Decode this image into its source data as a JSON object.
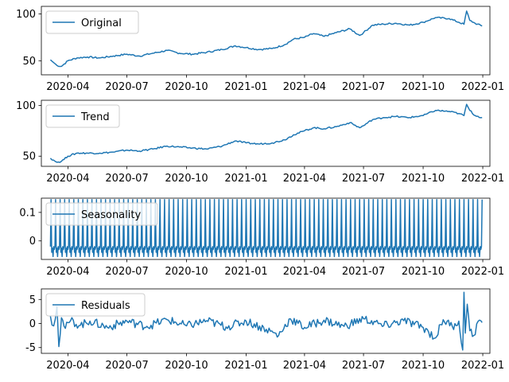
{
  "figure": {
    "line_color": "#1f77b4",
    "background": "#ffffff"
  },
  "chart_data": [
    {
      "type": "line",
      "legend": "top-left",
      "series": [
        {
          "name": "Original",
          "x": [
            "2020-03-05",
            "2020-03-10",
            "2020-03-15",
            "2020-03-22",
            "2020-04-01",
            "2020-04-15",
            "2020-05-01",
            "2020-05-20",
            "2020-06-10",
            "2020-07-01",
            "2020-07-20",
            "2020-08-10",
            "2020-09-01",
            "2020-09-20",
            "2020-10-10",
            "2020-11-01",
            "2020-11-25",
            "2020-12-15",
            "2021-01-01",
            "2021-01-20",
            "2021-02-10",
            "2021-03-01",
            "2021-03-15",
            "2021-04-01",
            "2021-04-15",
            "2021-05-01",
            "2021-05-20",
            "2021-06-10",
            "2021-06-25",
            "2021-07-01",
            "2021-07-15",
            "2021-08-01",
            "2021-08-20",
            "2021-09-10",
            "2021-10-01",
            "2021-10-20",
            "2021-11-10",
            "2021-11-25",
            "2021-12-03",
            "2021-12-07",
            "2021-12-12",
            "2021-12-20",
            "2021-12-31"
          ],
          "y": [
            51,
            48,
            45,
            44,
            50,
            53,
            54,
            53,
            55,
            57,
            55,
            58,
            61,
            58,
            57,
            59,
            62,
            66,
            64,
            62,
            63,
            67,
            73,
            75,
            79,
            76,
            80,
            84,
            77,
            80,
            88,
            89,
            90,
            88,
            91,
            96,
            95,
            91,
            89,
            103,
            93,
            90,
            87
          ]
        }
      ],
      "yticks": [
        50,
        100
      ],
      "ylim": [
        35,
        108
      ]
    },
    {
      "type": "line",
      "legend": "top-left",
      "series": [
        {
          "name": "Trend",
          "x": [
            "2020-03-05",
            "2020-03-10",
            "2020-03-15",
            "2020-03-22",
            "2020-04-01",
            "2020-04-15",
            "2020-05-01",
            "2020-05-20",
            "2020-06-10",
            "2020-07-01",
            "2020-07-20",
            "2020-08-10",
            "2020-09-01",
            "2020-09-20",
            "2020-10-10",
            "2020-11-01",
            "2020-11-25",
            "2020-12-15",
            "2021-01-01",
            "2021-01-20",
            "2021-02-10",
            "2021-03-01",
            "2021-03-15",
            "2021-04-01",
            "2021-04-15",
            "2021-05-01",
            "2021-05-20",
            "2021-06-10",
            "2021-06-25",
            "2021-07-01",
            "2021-07-15",
            "2021-08-01",
            "2021-08-20",
            "2021-09-10",
            "2021-10-01",
            "2021-10-20",
            "2021-11-10",
            "2021-11-25",
            "2021-12-03",
            "2021-12-07",
            "2021-12-12",
            "2021-12-20",
            "2021-12-31"
          ],
          "y": [
            48,
            46,
            44,
            45,
            50,
            53,
            53,
            53,
            54,
            56,
            55,
            57,
            60,
            59,
            58,
            57,
            60,
            65,
            63,
            62,
            63,
            66,
            71,
            75,
            78,
            77,
            79,
            83,
            78,
            80,
            86,
            88,
            89,
            88,
            90,
            95,
            94,
            92,
            90,
            101,
            95,
            90,
            88
          ]
        }
      ],
      "yticks": [
        50,
        100
      ],
      "ylim": [
        40,
        105
      ]
    },
    {
      "type": "line",
      "legend": "top-left",
      "series": [
        {
          "name": "Seasonality",
          "x": [
            "2020-03-05",
            "2021-12-31"
          ],
          "y": [
            -0.06,
            0.145
          ]
        }
      ],
      "seasonal_period_days": 7,
      "yticks": [
        0.0,
        0.1
      ],
      "ylim": [
        -0.065,
        0.15
      ]
    },
    {
      "type": "line",
      "legend": "top-left",
      "series": [
        {
          "name": "Residuals",
          "x": [
            "2020-03-05",
            "2020-03-10",
            "2020-03-15",
            "2020-03-18",
            "2020-03-22",
            "2020-03-28",
            "2020-04-05",
            "2020-04-20",
            "2020-05-05",
            "2020-06-01",
            "2020-07-01",
            "2020-08-01",
            "2020-09-01",
            "2020-10-01",
            "2020-11-01",
            "2020-12-01",
            "2021-01-01",
            "2021-02-01",
            "2021-02-20",
            "2021-03-10",
            "2021-04-01",
            "2021-05-01",
            "2021-06-01",
            "2021-07-01",
            "2021-08-01",
            "2021-09-01",
            "2021-10-01",
            "2021-10-20",
            "2021-11-01",
            "2021-11-15",
            "2021-11-25",
            "2021-12-01",
            "2021-12-03",
            "2021-12-05",
            "2021-12-08",
            "2021-12-12",
            "2021-12-18",
            "2021-12-25",
            "2021-12-31"
          ],
          "y": [
            1.5,
            -0.5,
            3.5,
            -4.8,
            1.2,
            -1.0,
            0.6,
            -0.4,
            0.5,
            -0.8,
            0.5,
            -0.6,
            0.8,
            -0.5,
            0.6,
            -0.7,
            0.5,
            -1.2,
            -2.5,
            1.0,
            -0.8,
            0.7,
            -0.6,
            1.0,
            -0.5,
            0.6,
            -0.8,
            -3.0,
            0.8,
            -0.6,
            0.5,
            -5.5,
            6.5,
            -2.0,
            4.0,
            -1.5,
            -2.5,
            0.5,
            0.2
          ]
        }
      ],
      "yticks": [
        -5,
        0,
        5
      ],
      "ylim": [
        -6.2,
        7.2
      ]
    }
  ],
  "x_axis": {
    "min": "2020-02-20",
    "max": "2022-01-12",
    "ticks": [
      {
        "date": "2020-04-01",
        "label": "2020-04"
      },
      {
        "date": "2020-07-01",
        "label": "2020-07"
      },
      {
        "date": "2020-10-01",
        "label": "2020-10"
      },
      {
        "date": "2021-01-01",
        "label": "2021-01"
      },
      {
        "date": "2021-04-01",
        "label": "2021-04"
      },
      {
        "date": "2021-07-01",
        "label": "2021-07"
      },
      {
        "date": "2021-10-01",
        "label": "2021-10"
      },
      {
        "date": "2022-01-01",
        "label": "2022-01"
      }
    ]
  }
}
